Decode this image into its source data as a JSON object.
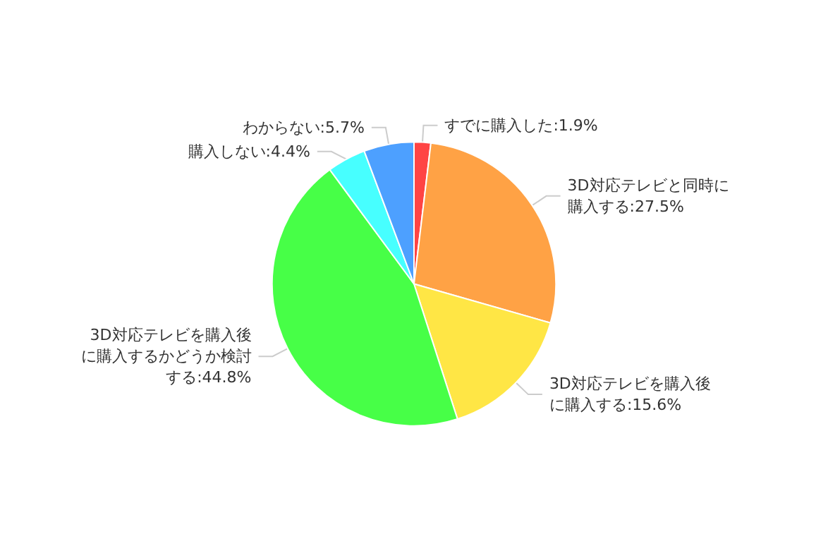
{
  "chart_data": {
    "type": "pie",
    "categories": [
      "すでに購入した",
      "3D対応テレビと同時に購入する",
      "3D対応テレビを購入後に購入する",
      "3D対応テレビを購入後に購入するかどうか検討する",
      "購入しない",
      "わからない"
    ],
    "values": [
      1.9,
      27.5,
      15.6,
      44.8,
      4.4,
      5.7
    ],
    "value_labels": [
      "1.9%",
      "27.5%",
      "15.6%",
      "44.8%",
      "4.4%",
      "5.7%"
    ],
    "colors": [
      "#ff4444",
      "#ffa245",
      "#ffe645",
      "#47ff47",
      "#47ffff",
      "#4da0ff"
    ],
    "legend": false
  }
}
